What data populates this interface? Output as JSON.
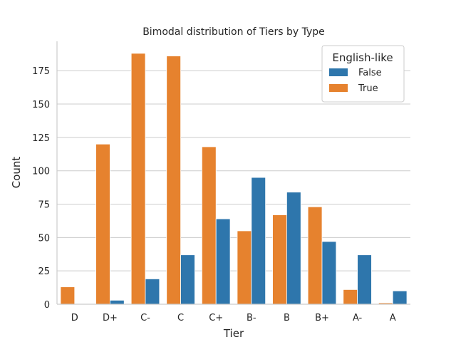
{
  "chart_data": {
    "type": "bar",
    "title": "Bimodal distribution of Tiers by Type",
    "xlabel": "Tier",
    "ylabel": "Count",
    "categories": [
      "D",
      "D+",
      "C-",
      "C",
      "C+",
      "B-",
      "B",
      "B+",
      "A-",
      "A"
    ],
    "series": [
      {
        "name": "True",
        "color": "#e6822e",
        "values": [
          13,
          120,
          188,
          186,
          118,
          55,
          67,
          73,
          11,
          1
        ]
      },
      {
        "name": "False",
        "color": "#2e76ac",
        "values": [
          0,
          3,
          19,
          37,
          64,
          95,
          84,
          47,
          37,
          10
        ]
      }
    ],
    "legend": {
      "title": "English-like",
      "placement": "top-right",
      "order": [
        "False",
        "True"
      ]
    },
    "ylim": [
      0,
      197
    ],
    "yticks": [
      0,
      25,
      50,
      75,
      100,
      125,
      150,
      175
    ],
    "grid": "y"
  }
}
